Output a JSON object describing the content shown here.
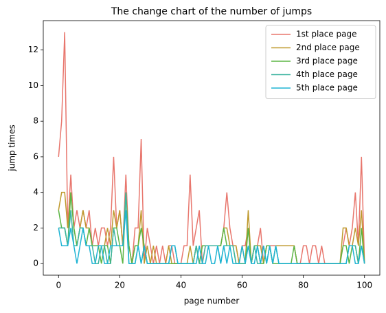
{
  "chart_data": {
    "type": "line",
    "title": "The change chart of the number of jumps",
    "xlabel": "page number",
    "ylabel": "jump times",
    "x": [
      0,
      1,
      2,
      3,
      4,
      5,
      6,
      7,
      8,
      9,
      10,
      11,
      12,
      13,
      14,
      15,
      16,
      17,
      18,
      19,
      20,
      21,
      22,
      23,
      24,
      25,
      26,
      27,
      28,
      29,
      30,
      31,
      32,
      33,
      34,
      35,
      36,
      37,
      38,
      39,
      40,
      41,
      42,
      43,
      44,
      45,
      46,
      47,
      48,
      49,
      50,
      51,
      52,
      53,
      54,
      55,
      56,
      57,
      58,
      59,
      60,
      61,
      62,
      63,
      64,
      65,
      66,
      67,
      68,
      69,
      70,
      71,
      72,
      73,
      74,
      75,
      76,
      77,
      78,
      79,
      80,
      81,
      82,
      83,
      84,
      85,
      86,
      87,
      88,
      89,
      90,
      91,
      92,
      93,
      94,
      95,
      96,
      97,
      98,
      99,
      100
    ],
    "series": [
      {
        "name": "1st place page",
        "color": "#e8766d",
        "values": [
          6,
          8,
          13,
          2,
          5,
          2,
          3,
          2,
          3,
          2,
          3,
          1,
          2,
          1,
          2,
          2,
          1,
          2,
          6,
          2,
          3,
          1,
          5,
          1,
          0,
          2,
          2,
          7,
          0,
          2,
          1,
          0,
          1,
          0,
          1,
          0,
          1,
          1,
          0,
          0,
          0,
          1,
          1,
          5,
          1,
          2,
          3,
          0,
          1,
          1,
          1,
          1,
          1,
          1,
          2,
          4,
          2,
          1,
          1,
          0,
          1,
          1,
          2,
          0,
          1,
          1,
          2,
          0,
          1,
          1,
          1,
          1,
          1,
          1,
          1,
          1,
          1,
          1,
          0,
          0,
          1,
          1,
          0,
          1,
          1,
          0,
          1,
          0,
          0,
          0,
          0,
          0,
          0,
          1,
          2,
          1,
          2,
          4,
          1,
          6,
          0
        ]
      },
      {
        "name": "2nd place page",
        "color": "#bf9a2f",
        "values": [
          3,
          4,
          4,
          2,
          4,
          2,
          1,
          2,
          3,
          2,
          2,
          1,
          1,
          1,
          1,
          1,
          2,
          1,
          3,
          2,
          3,
          1,
          4,
          1,
          0,
          1,
          1,
          3,
          0,
          1,
          0,
          1,
          0,
          0,
          0,
          0,
          1,
          0,
          0,
          0,
          0,
          0,
          0,
          1,
          0,
          1,
          0,
          1,
          1,
          1,
          1,
          1,
          1,
          1,
          2,
          2,
          1,
          1,
          1,
          0,
          1,
          0,
          3,
          0,
          1,
          1,
          1,
          0,
          1,
          1,
          0,
          1,
          1,
          1,
          1,
          1,
          1,
          1,
          0,
          0,
          0,
          0,
          0,
          0,
          0,
          0,
          0,
          0,
          0,
          0,
          0,
          0,
          0,
          2,
          2,
          1,
          1,
          2,
          1,
          3,
          0
        ]
      },
      {
        "name": "3rd place page",
        "color": "#5bb544",
        "values": [
          3,
          2,
          2,
          1,
          4,
          2,
          1,
          2,
          2,
          1,
          2,
          1,
          1,
          1,
          0,
          1,
          1,
          0,
          2,
          2,
          1,
          0,
          4,
          1,
          0,
          1,
          1,
          2,
          1,
          0,
          0,
          0,
          0,
          0,
          0,
          0,
          0,
          0,
          0,
          0,
          0,
          0,
          0,
          0,
          0,
          1,
          0,
          1,
          1,
          1,
          1,
          1,
          1,
          1,
          2,
          1,
          1,
          1,
          0,
          0,
          0,
          0,
          2,
          0,
          1,
          1,
          0,
          0,
          1,
          1,
          0,
          0,
          0,
          0,
          0,
          0,
          0,
          1,
          0,
          0,
          0,
          0,
          0,
          0,
          0,
          0,
          0,
          0,
          0,
          0,
          0,
          0,
          0,
          1,
          1,
          0,
          1,
          1,
          0,
          2,
          0
        ]
      },
      {
        "name": "4th place page",
        "color": "#3cb4a0",
        "values": [
          2,
          2,
          2,
          1,
          3,
          1,
          1,
          2,
          2,
          1,
          1,
          1,
          0,
          0,
          1,
          1,
          0,
          0,
          2,
          1,
          1,
          1,
          4,
          0,
          0,
          0,
          1,
          0,
          1,
          0,
          0,
          0,
          0,
          0,
          0,
          0,
          0,
          1,
          1,
          0,
          0,
          0,
          0,
          0,
          0,
          1,
          0,
          0,
          1,
          1,
          1,
          1,
          1,
          0,
          1,
          1,
          1,
          1,
          0,
          0,
          0,
          0,
          1,
          0,
          1,
          0,
          0,
          1,
          0,
          1,
          0,
          1,
          0,
          0,
          0,
          0,
          0,
          0,
          0,
          0,
          0,
          0,
          0,
          0,
          0,
          0,
          0,
          0,
          0,
          0,
          0,
          0,
          0,
          0,
          0,
          1,
          1,
          1,
          0,
          1,
          0
        ]
      },
      {
        "name": "5th place page",
        "color": "#1fb4d4",
        "values": [
          2,
          1,
          1,
          1,
          2,
          1,
          0,
          1,
          2,
          1,
          1,
          0,
          0,
          1,
          1,
          0,
          0,
          1,
          1,
          1,
          1,
          1,
          3,
          0,
          0,
          0,
          1,
          0,
          1,
          0,
          0,
          0,
          0,
          0,
          0,
          0,
          0,
          1,
          1,
          0,
          0,
          0,
          0,
          0,
          0,
          0,
          1,
          0,
          0,
          1,
          0,
          0,
          1,
          0,
          1,
          0,
          1,
          0,
          0,
          0,
          1,
          0,
          1,
          0,
          0,
          1,
          0,
          1,
          0,
          1,
          0,
          1,
          0,
          0,
          0,
          0,
          0,
          0,
          0,
          0,
          0,
          0,
          0,
          0,
          0,
          0,
          0,
          0,
          0,
          0,
          0,
          0,
          0,
          0,
          0,
          1,
          1,
          0,
          0,
          1,
          0
        ]
      }
    ],
    "xlim": [
      -5,
      105
    ],
    "ylim": [
      -0.65,
      13.65
    ],
    "xticks": [
      0,
      20,
      40,
      60,
      80,
      100
    ],
    "yticks": [
      0,
      2,
      4,
      6,
      8,
      10,
      12
    ],
    "legend": "upper right"
  }
}
